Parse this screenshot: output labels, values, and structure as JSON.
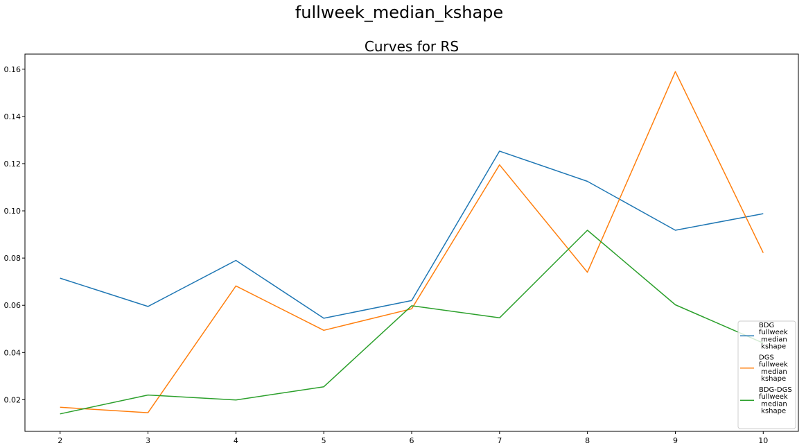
{
  "chart_data": {
    "type": "line",
    "suptitle": "fullweek_median_kshape",
    "title": "Curves for RS",
    "xlabel": "",
    "ylabel": "",
    "x": [
      2,
      3,
      4,
      5,
      6,
      7,
      8,
      9,
      10
    ],
    "xlim": [
      1.6,
      10.4
    ],
    "ylim": [
      0.0066,
      0.1664
    ],
    "yticks": [
      0.02,
      0.04,
      0.06,
      0.08,
      0.1,
      0.12,
      0.14,
      0.16
    ],
    "ytick_labels": [
      "0.02",
      "0.04",
      "0.06",
      "0.08",
      "0.10",
      "0.12",
      "0.14",
      "0.16"
    ],
    "xtick_labels": [
      "2",
      "3",
      "4",
      "5",
      "6",
      "7",
      "8",
      "9",
      "10"
    ],
    "grid": false,
    "legend_position": "lower-right",
    "series": [
      {
        "name": "BDG\nfullweek\n  median\n  kshape",
        "color": "#1f77b4",
        "values": [
          0.0715,
          0.0595,
          0.079,
          0.0545,
          0.062,
          0.1253,
          0.1125,
          0.0918,
          0.0988
        ]
      },
      {
        "name": "DGS\nfullweek\n  median\n  kshape",
        "color": "#ff7f0e",
        "values": [
          0.0168,
          0.0145,
          0.0682,
          0.0494,
          0.0585,
          0.1195,
          0.074,
          0.159,
          0.0822
        ]
      },
      {
        "name": "BDG-DGS\nfullweek\n  median\n  kshape",
        "color": "#2ca02c",
        "values": [
          0.014,
          0.022,
          0.0199,
          0.0255,
          0.0598,
          0.0547,
          0.0918,
          0.0602,
          0.044
        ]
      }
    ]
  }
}
